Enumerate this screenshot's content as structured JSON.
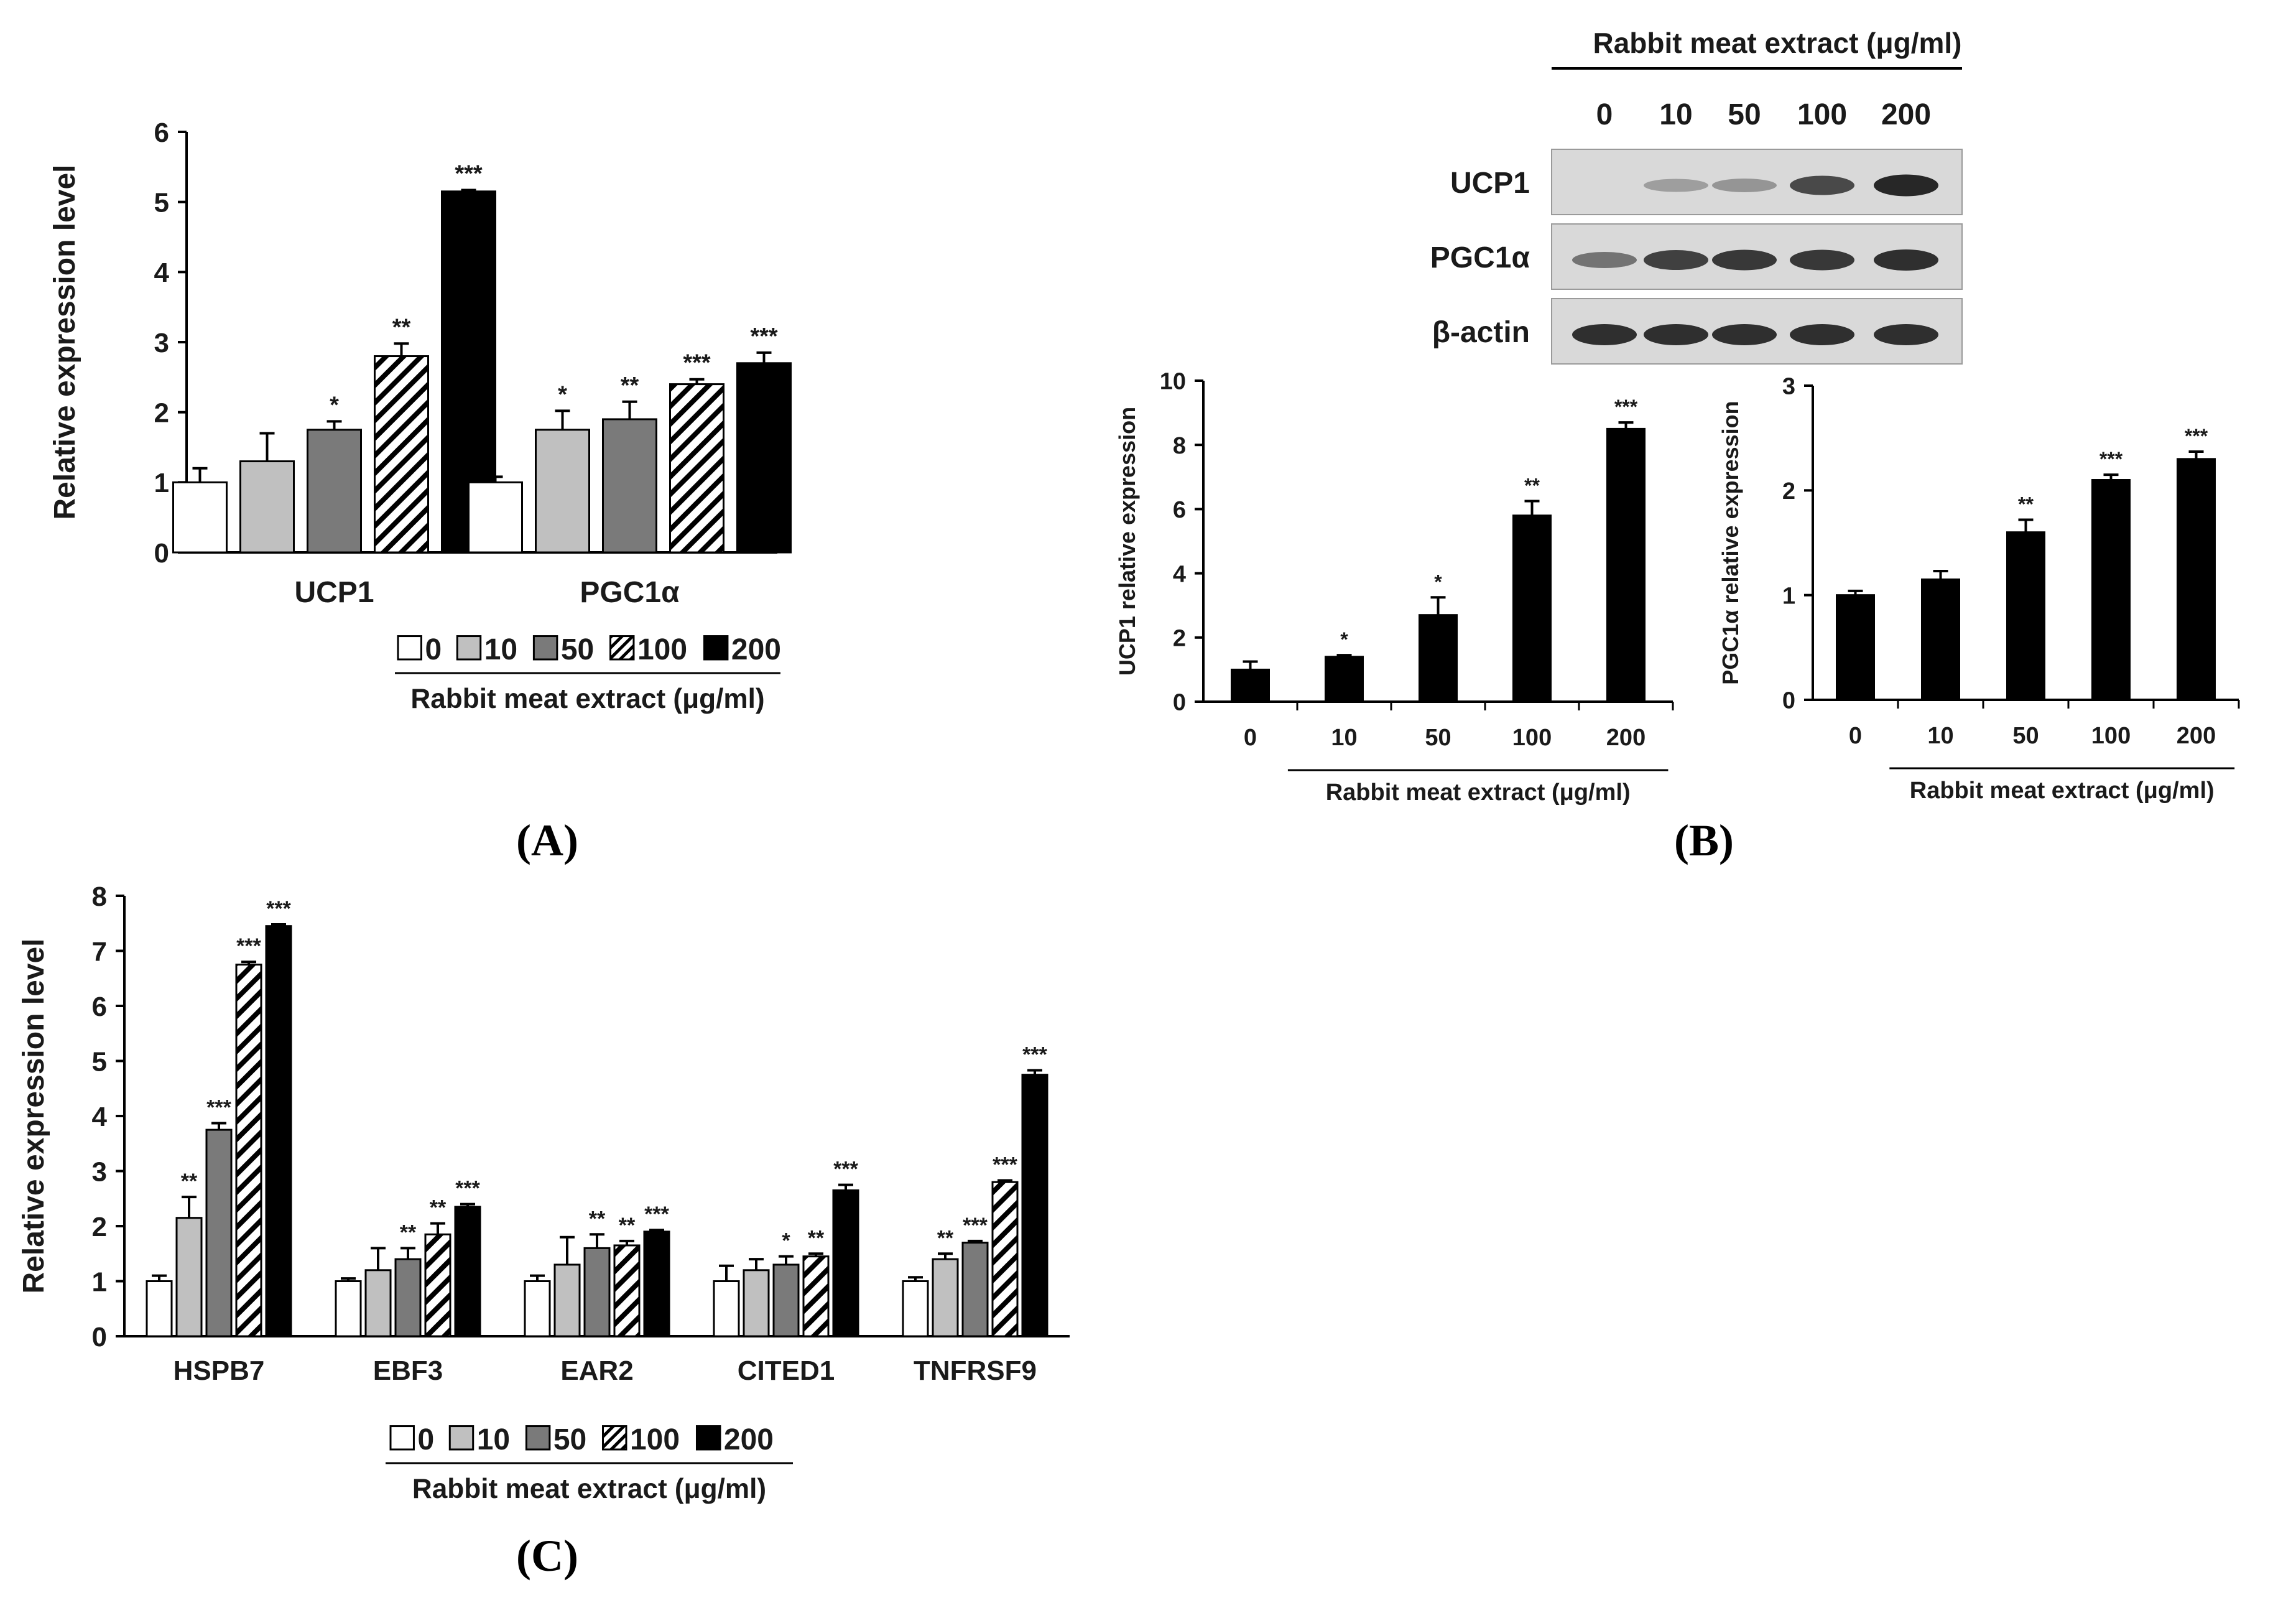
{
  "colors": {
    "c0": "#ffffff",
    "c10": "#c0c0c0",
    "c50": "#7a7a7a",
    "c100_bg": "#ffffff",
    "c100_stripe": "#000000",
    "c200": "#000000",
    "axis": "#000000",
    "text": "#1a1a1a"
  },
  "panels": {
    "A": {
      "label": "(A)"
    },
    "B": {
      "label": "(B)"
    },
    "C": {
      "label": "(C)"
    }
  },
  "legend": {
    "title": "Rabbit meat extract (μg/ml)",
    "entries": [
      "0",
      "10",
      "50",
      "100",
      "200"
    ]
  },
  "blot": {
    "title": "Rabbit meat extract (μg/ml)",
    "lanes": [
      "0",
      "10",
      "50",
      "100",
      "200"
    ],
    "rows": [
      {
        "name": "UCP1",
        "intensity": [
          0.0,
          0.25,
          0.3,
          0.75,
          0.95
        ]
      },
      {
        "name": "PGC1α",
        "intensity": [
          0.5,
          0.8,
          0.85,
          0.85,
          0.9
        ]
      },
      {
        "name": "β-actin",
        "intensity": [
          0.9,
          0.9,
          0.9,
          0.9,
          0.9
        ]
      }
    ]
  },
  "chart_data": [
    {
      "id": "A",
      "type": "bar",
      "title": "",
      "ylabel": "Relative expression level",
      "xlabel": "Rabbit meat extract (μg/ml)",
      "ylim": [
        0,
        6
      ],
      "yticks": [
        "0",
        "1",
        "2",
        "3",
        "4",
        "5",
        "6"
      ],
      "categories": [
        "UCP1",
        "PGC1α"
      ],
      "series": [
        {
          "name": "0",
          "values": [
            1.0,
            1.0
          ],
          "errors": [
            0.2,
            0.08
          ],
          "sig": [
            "",
            ""
          ]
        },
        {
          "name": "10",
          "values": [
            1.3,
            1.75
          ],
          "errors": [
            0.4,
            0.27
          ],
          "sig": [
            "",
            "*"
          ]
        },
        {
          "name": "50",
          "values": [
            1.75,
            1.9
          ],
          "errors": [
            0.12,
            0.25
          ],
          "sig": [
            "*",
            "**"
          ]
        },
        {
          "name": "100",
          "values": [
            2.8,
            2.4
          ],
          "errors": [
            0.18,
            0.07
          ],
          "sig": [
            "**",
            "***"
          ]
        },
        {
          "name": "200",
          "values": [
            5.15,
            2.7
          ],
          "errors": [
            0.02,
            0.15
          ],
          "sig": [
            "***",
            "***"
          ]
        }
      ]
    },
    {
      "id": "B1",
      "type": "bar",
      "title": "",
      "ylabel": "UCP1 relative expression",
      "xlabel": "Rabbit meat extract (μg/ml)",
      "ylim": [
        0,
        10
      ],
      "yticks": [
        "0",
        "2",
        "4",
        "6",
        "8",
        "10"
      ],
      "categories": [
        "0",
        "10",
        "50",
        "100",
        "200"
      ],
      "values": [
        1.0,
        1.4,
        2.7,
        5.8,
        8.5
      ],
      "errors": [
        0.25,
        0.05,
        0.55,
        0.45,
        0.2
      ],
      "sig": [
        "",
        "*",
        "*",
        "**",
        "***"
      ]
    },
    {
      "id": "B2",
      "type": "bar",
      "title": "",
      "ylabel": "PGC1α relative expression",
      "xlabel": "Rabbit meat extract (μg/ml)",
      "ylim": [
        0,
        3
      ],
      "yticks": [
        "0",
        "1",
        "2",
        "3"
      ],
      "categories": [
        "0",
        "10",
        "50",
        "100",
        "200"
      ],
      "values": [
        1.0,
        1.15,
        1.6,
        2.1,
        2.3
      ],
      "errors": [
        0.04,
        0.08,
        0.12,
        0.05,
        0.07
      ],
      "sig": [
        "",
        "",
        "**",
        "***",
        "***"
      ]
    },
    {
      "id": "C",
      "type": "bar",
      "title": "",
      "ylabel": "Relative expression level",
      "xlabel": "Rabbit meat extract (μg/ml)",
      "ylim": [
        0,
        8
      ],
      "yticks": [
        "0",
        "1",
        "2",
        "3",
        "4",
        "5",
        "6",
        "7",
        "8"
      ],
      "categories": [
        "HSPB7",
        "EBF3",
        "EAR2",
        "CITED1",
        "TNFRSF9"
      ],
      "series": [
        {
          "name": "0",
          "values": [
            1.0,
            1.0,
            1.0,
            1.0,
            1.0
          ],
          "errors": [
            0.1,
            0.05,
            0.1,
            0.28,
            0.07
          ],
          "sig": [
            "",
            "",
            "",
            "",
            ""
          ]
        },
        {
          "name": "10",
          "values": [
            2.15,
            1.2,
            1.3,
            1.2,
            1.4
          ],
          "errors": [
            0.38,
            0.4,
            0.5,
            0.2,
            0.1
          ],
          "sig": [
            "**",
            "",
            "",
            "",
            "**"
          ]
        },
        {
          "name": "50",
          "values": [
            3.75,
            1.4,
            1.6,
            1.3,
            1.7
          ],
          "errors": [
            0.12,
            0.2,
            0.25,
            0.15,
            0.03
          ],
          "sig": [
            "***",
            "**",
            "**",
            "*",
            "***"
          ]
        },
        {
          "name": "100",
          "values": [
            6.75,
            1.85,
            1.65,
            1.45,
            2.8
          ],
          "errors": [
            0.05,
            0.2,
            0.08,
            0.05,
            0.03
          ],
          "sig": [
            "***",
            "**",
            "**",
            "**",
            "***"
          ]
        },
        {
          "name": "200",
          "values": [
            7.45,
            2.35,
            1.9,
            2.65,
            4.75
          ],
          "errors": [
            0.03,
            0.05,
            0.03,
            0.1,
            0.08
          ],
          "sig": [
            "***",
            "***",
            "***",
            "***",
            "***"
          ]
        }
      ]
    }
  ]
}
